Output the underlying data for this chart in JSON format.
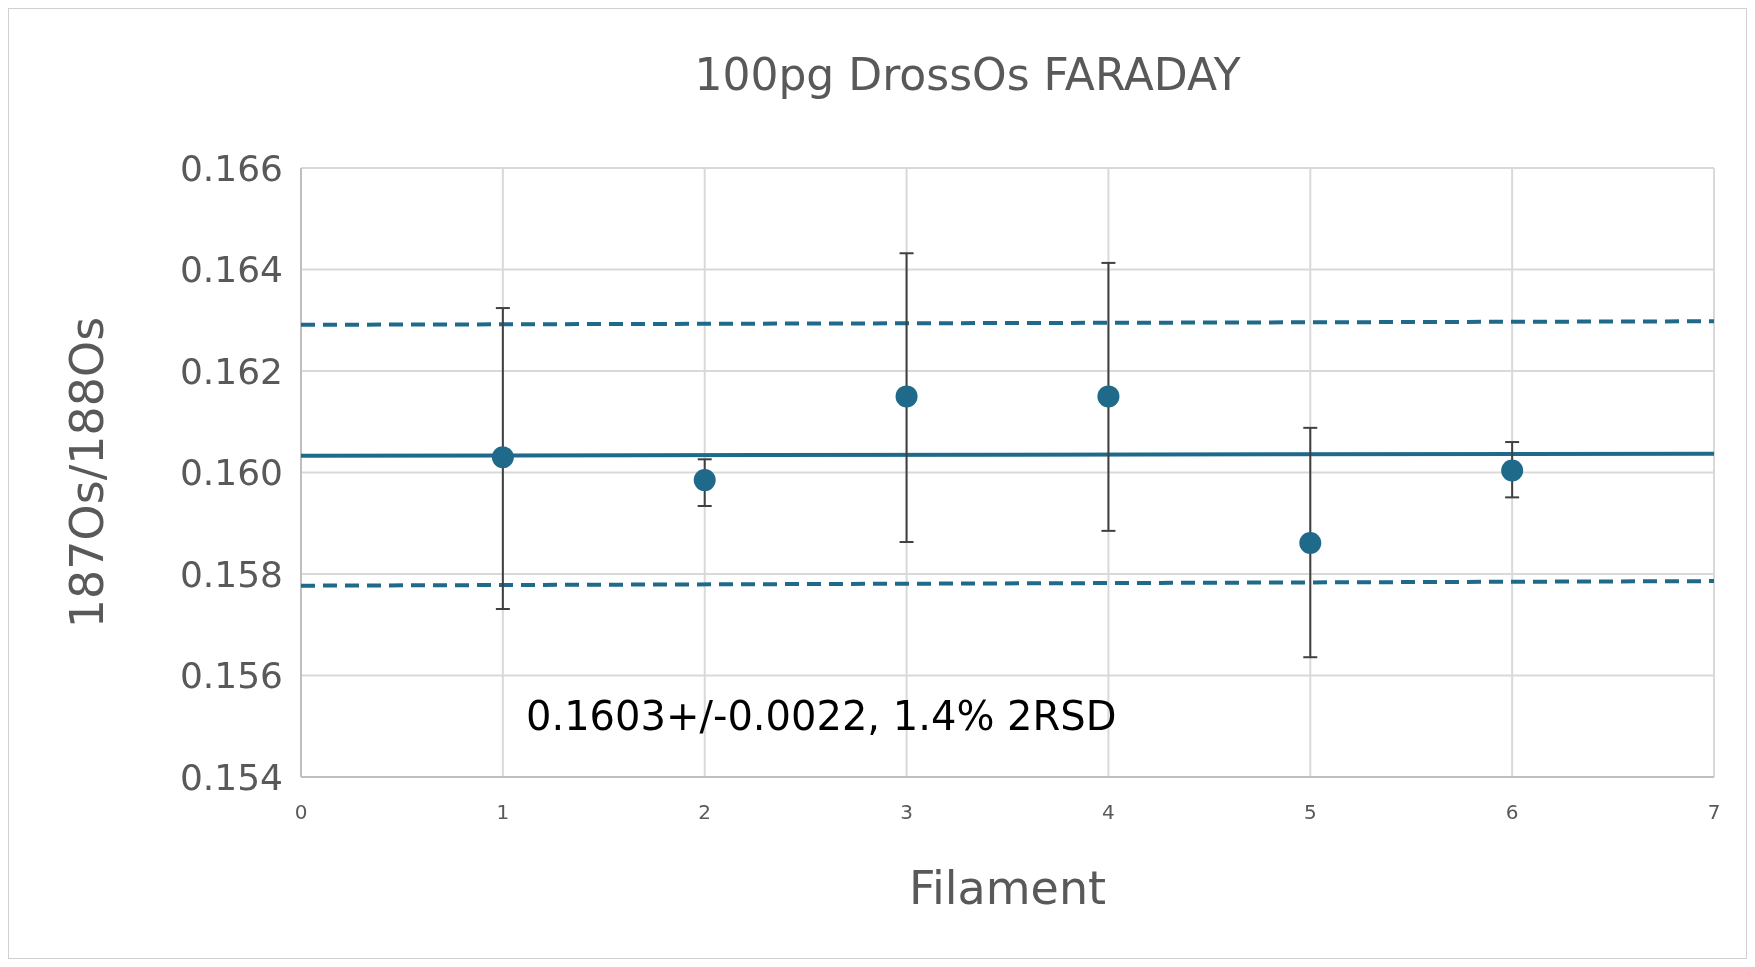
{
  "chart_data": {
    "type": "scatter",
    "title": "100pg DrossOs FARADAY",
    "xlabel": "Filament",
    "ylabel": "187Os/188Os",
    "xlim": [
      0,
      7
    ],
    "xticks": [
      0,
      1,
      2,
      3,
      4,
      5,
      6,
      7
    ],
    "ylim": [
      0.154,
      0.166
    ],
    "yticks": [
      {
        "value": 0.154,
        "label": "0.154"
      },
      {
        "value": 0.156,
        "label": "0.156"
      },
      {
        "value": 0.158,
        "label": "0.158"
      },
      {
        "value": 0.16,
        "label": "0.160"
      },
      {
        "value": 0.162,
        "label": "0.162"
      },
      {
        "value": 0.164,
        "label": "0.164"
      },
      {
        "value": 0.166,
        "label": "0.166"
      }
    ],
    "grid": true,
    "annotations": [
      "0.1603+/-0.0022, 1.4% 2RSD"
    ],
    "series": [
      {
        "color": "#1f6a8a",
        "marker": "circle",
        "x": [
          1,
          2,
          3,
          4,
          5,
          6
        ],
        "values": [
          0.1603,
          0.15985,
          0.1615,
          0.1615,
          0.15861,
          0.16004
        ],
        "errors": [
          [
            0.15731,
            0.16324
          ],
          [
            0.15934,
            0.16026
          ],
          [
            0.15863,
            0.16432
          ],
          [
            0.15885,
            0.16413
          ],
          [
            0.15636,
            0.16088
          ],
          [
            0.15951,
            0.1606
          ]
        ]
      },
      {
        "type": "line",
        "color": "#1f6a8a",
        "line_style": "solid",
        "x": [
          0,
          7
        ],
        "values": [
          0.16033,
          0.16037
        ]
      },
      {
        "type": "line",
        "color": "#1f6a8a",
        "line_style": "dashed",
        "x": [
          0,
          7
        ],
        "values": [
          0.16291,
          0.16298
        ]
      },
      {
        "type": "line",
        "color": "#1f6a8a",
        "line_style": "dashed",
        "x": [
          0,
          7
        ],
        "values": [
          0.15777,
          0.15786
        ]
      }
    ]
  }
}
